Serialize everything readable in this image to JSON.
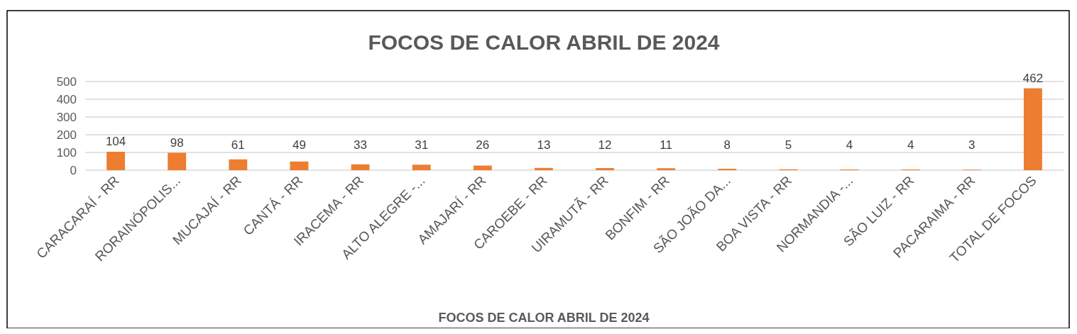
{
  "chart_data": {
    "type": "bar",
    "title": "FOCOS DE CALOR ABRIL DE 2024",
    "xlabel": "FOCOS DE CALOR ABRIL DE 2024",
    "categories": [
      "CARACARAÍ - RR",
      "RORAINÓPOLIS...",
      "MUCAJAÍ - RR",
      "CANTÁ - RR",
      "IRACEMA - RR",
      "ALTO ALEGRE -...",
      "AMAJARÍ - RR",
      "CAROEBE - RR",
      "UIRAMUTÃ - RR",
      "BONFIM - RR",
      "SÃO JOÃO DA...",
      "BOA VISTA - RR",
      "NORMANDIA -...",
      "SÃO LUIZ - RR",
      "PACARAIMA - RR",
      "TOTAL DE FOCOS"
    ],
    "values": [
      104,
      98,
      61,
      49,
      33,
      31,
      26,
      13,
      12,
      11,
      8,
      5,
      4,
      4,
      3,
      462
    ],
    "color": "#ed7d31",
    "ylim": [
      0,
      500
    ],
    "yticks": [
      0,
      100,
      200,
      300,
      400,
      500
    ],
    "grid": "y",
    "data_labels": true
  }
}
